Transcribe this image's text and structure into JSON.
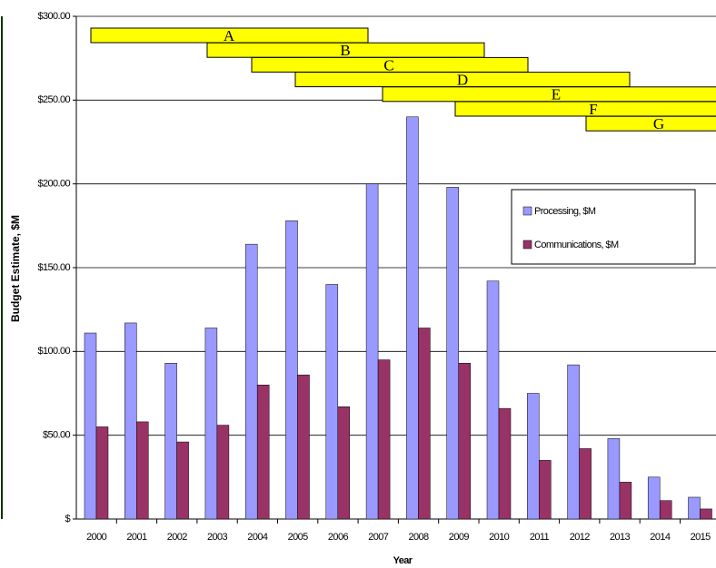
{
  "chart_data": {
    "type": "bar",
    "y_label": "Budget Estimate, $M",
    "x_label": "Year",
    "categories": [
      "2000",
      "2001",
      "2002",
      "2003",
      "2004",
      "2005",
      "2006",
      "2007",
      "2008",
      "2009",
      "2010",
      "2011",
      "2012",
      "2013",
      "2014",
      "2015"
    ],
    "series": [
      {
        "name": "Processing, $M",
        "color": "#9999ff",
        "values": [
          111,
          117,
          93,
          114,
          164,
          178,
          140,
          200,
          240,
          198,
          142,
          75,
          92,
          48,
          25,
          13
        ]
      },
      {
        "name": "Communications, $M",
        "color": "#993366",
        "values": [
          55,
          58,
          46,
          56,
          80,
          86,
          67,
          95,
          114,
          93,
          66,
          35,
          42,
          22,
          11,
          6
        ]
      }
    ],
    "ylim": [
      0,
      300
    ],
    "yticks": [
      {
        "value": 0,
        "label": "$"
      },
      {
        "value": 50,
        "label": "$50.00"
      },
      {
        "value": 100,
        "label": "$100.00"
      },
      {
        "value": 150,
        "label": "$150.00"
      },
      {
        "value": 200,
        "label": "$200.00"
      },
      {
        "value": 250,
        "label": "$250.00"
      },
      {
        "value": 300,
        "label": "$300.00"
      }
    ],
    "grid": true,
    "phases": [
      "A",
      "B",
      "C",
      "D",
      "E",
      "F",
      "G"
    ],
    "phase_color": "#ffff00"
  }
}
